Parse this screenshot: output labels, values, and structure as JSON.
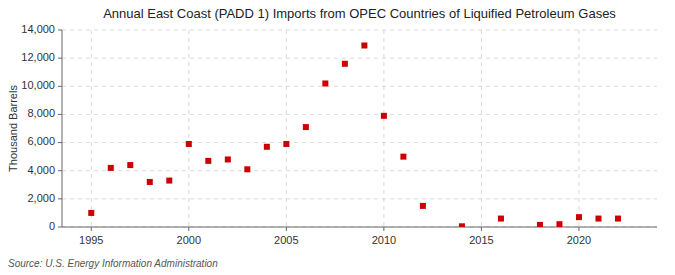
{
  "chart_data": {
    "type": "scatter",
    "title": "Annual East Coast (PADD 1) Imports from OPEC Countries of Liquified Petroleum Gases",
    "ylabel": "Thousand Barrels",
    "annotation": "Source: U.S. Energy Information Administration",
    "x": [
      1995,
      1996,
      1997,
      1998,
      1999,
      2000,
      2001,
      2002,
      2003,
      2004,
      2005,
      2006,
      2007,
      2008,
      2009,
      2010,
      2011,
      2012,
      2014,
      2016,
      2018,
      2019,
      2020,
      2021,
      2022
    ],
    "values": [
      1000,
      4200,
      4400,
      3200,
      3300,
      5900,
      4700,
      4800,
      4100,
      5700,
      5900,
      7100,
      10200,
      11600,
      12900,
      7900,
      5000,
      1500,
      50,
      600,
      150,
      200,
      700,
      600,
      600
    ],
    "color": "#cc0000",
    "marker": "square",
    "grid": true,
    "xlim": [
      1993.5,
      2024
    ],
    "xticks": [
      1995,
      2000,
      2005,
      2010,
      2015,
      2020
    ],
    "ylim": [
      0,
      14000
    ],
    "yticks": [
      0,
      {
        "value": 2000,
        "label": "2,000"
      },
      {
        "value": 4000,
        "label": "4,000"
      },
      {
        "value": 6000,
        "label": "6,000"
      },
      {
        "value": 8000,
        "label": "8,000"
      },
      {
        "value": 10000,
        "label": "10,000"
      },
      {
        "value": 12000,
        "label": "12,000"
      },
      {
        "value": 14000,
        "label": "14,000"
      }
    ]
  }
}
